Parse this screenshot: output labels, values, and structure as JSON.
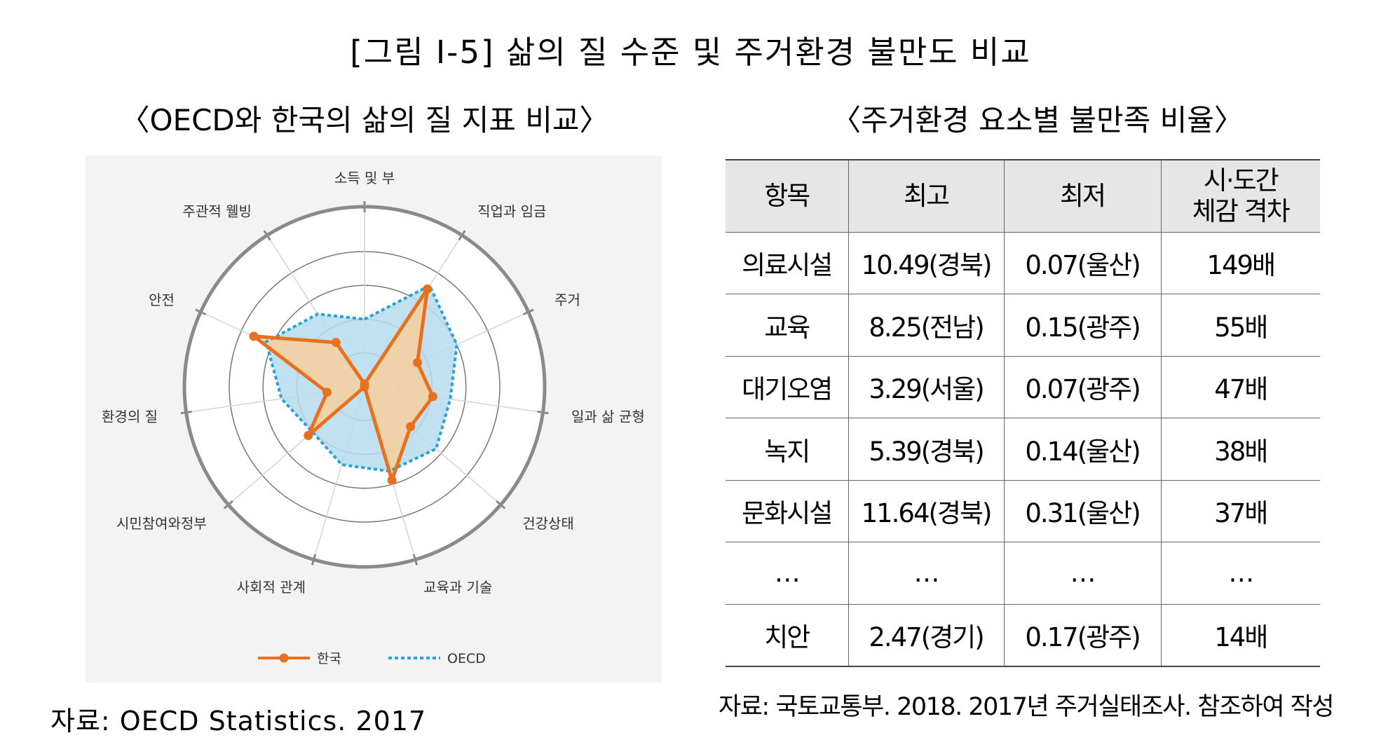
{
  "title": "[그림 Ⅰ-5] 삶의 질 수준 및 주거환경 불만도 비교",
  "radar": {
    "subtitle": "〈OECD와 한국의 삶의 질 지표 비교〉",
    "source": "자료: OECD Statistics. 2017"
  },
  "table": {
    "subtitle": "〈주거환경 요소별 불만족 비율〉",
    "source": "자료: 국토교통부. 2018. 2017년 주거실태조사. 참조하여 작성",
    "headers": [
      "항목",
      "최고",
      "최저",
      "시·도간 체감 격차"
    ],
    "rows": [
      [
        "의료시설",
        "10.49(경북)",
        "0.07(울산)",
        "149배"
      ],
      [
        "교육",
        "8.25(전남)",
        "0.15(광주)",
        "55배"
      ],
      [
        "대기오염",
        "3.29(서울)",
        "0.07(광주)",
        "47배"
      ],
      [
        "녹지",
        "5.39(경북)",
        "0.14(울산)",
        "38배"
      ],
      [
        "문화시설",
        "11.64(경북)",
        "0.31(울산)",
        "37배"
      ],
      [
        "…",
        "…",
        "…",
        "…"
      ],
      [
        "치안",
        "2.47(경기)",
        "0.17(광주)",
        "14배"
      ]
    ]
  },
  "chart_data": {
    "type": "radar",
    "categories": [
      "소득 및 부",
      "직업과 임금",
      "주거",
      "일과 삶 균형",
      "건강상태",
      "교육과 기술",
      "사회적 관계",
      "시민참여와정부",
      "환경의 질",
      "안전",
      "주관적 웰빙"
    ],
    "series": [
      {
        "name": "한국",
        "values": [
          0.2,
          8.6,
          4.3,
          5.1,
          4.5,
          7.2,
          0,
          5.5,
          2.8,
          9.0,
          3.9
        ]
      },
      {
        "name": "OECD",
        "values": [
          5.0,
          8.9,
          7.5,
          6.4,
          7.0,
          6.5,
          6.0,
          5.1,
          6.2,
          8.0,
          6.4
        ]
      }
    ],
    "rlim": [
      0,
      10
    ],
    "legend_position": "bottom",
    "colors": {
      "한국": "#e8711f",
      "OECD": "#2aa1da",
      "korea_fill": "#f8cf9d",
      "oecd_fill": "#b7dced"
    }
  }
}
